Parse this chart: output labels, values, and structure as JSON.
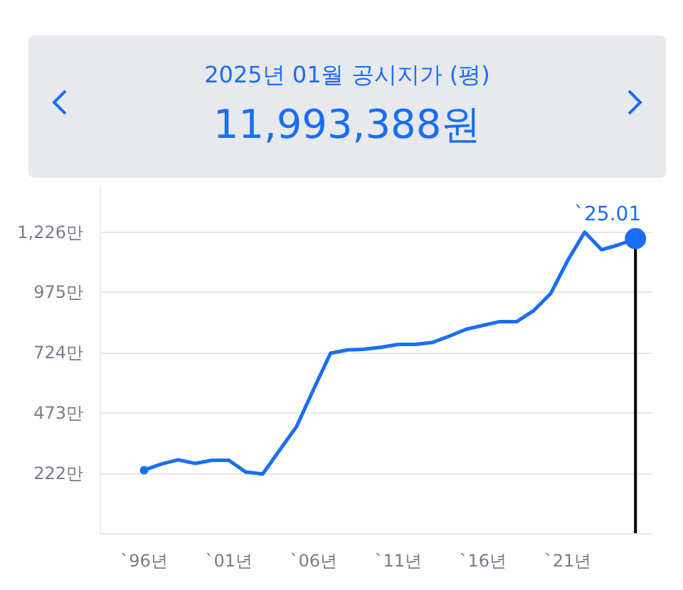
{
  "chart_data": {
    "type": "line",
    "title": "2025년 01월 공시지가 (평)",
    "subtitle": "11,993,388원",
    "x": [
      "1996",
      "1997",
      "1998",
      "1999",
      "2000",
      "2001",
      "2002",
      "2003",
      "2004",
      "2005",
      "2006",
      "2007",
      "2008",
      "2009",
      "2010",
      "2011",
      "2012",
      "2013",
      "2014",
      "2015",
      "2016",
      "2017",
      "2018",
      "2019",
      "2020",
      "2021",
      "2022",
      "2023",
      "2024",
      "2025-01"
    ],
    "series": [
      {
        "color": "#1a6ef5",
        "values": [
          236,
          261,
          279,
          264,
          277,
          277,
          228,
          220,
          319,
          418,
          572,
          722,
          736,
          739,
          747,
          759,
          759,
          767,
          793,
          822,
          838,
          854,
          854,
          900,
          971,
          1108,
          1226,
          1153,
          1173,
          1199
        ]
      }
    ],
    "xlim": [
      "1993-06",
      "2026-01"
    ],
    "xticks": [
      {
        "value": "1996",
        "label": "`96년"
      },
      {
        "value": "2001",
        "label": "`01년"
      },
      {
        "value": "2006",
        "label": "`06년"
      },
      {
        "value": "2011",
        "label": "`11년"
      },
      {
        "value": "2016",
        "label": "`16년"
      },
      {
        "value": "2021",
        "label": "`21년"
      }
    ],
    "ylim": [
      -29,
      1420
    ],
    "yticks": [
      {
        "value": 222,
        "label": "222만"
      },
      {
        "value": 473,
        "label": "473만"
      },
      {
        "value": 724,
        "label": "724만"
      },
      {
        "value": 975,
        "label": "975만"
      },
      {
        "value": 1226,
        "label": "1,226만"
      }
    ],
    "grid": "y",
    "annotations": [
      {
        "text": "`25.01",
        "x": "2025-01",
        "y": 1199
      }
    ],
    "ref_lines": [
      {
        "axis": "x",
        "value": "2025-01",
        "color": "#000000"
      }
    ]
  }
}
